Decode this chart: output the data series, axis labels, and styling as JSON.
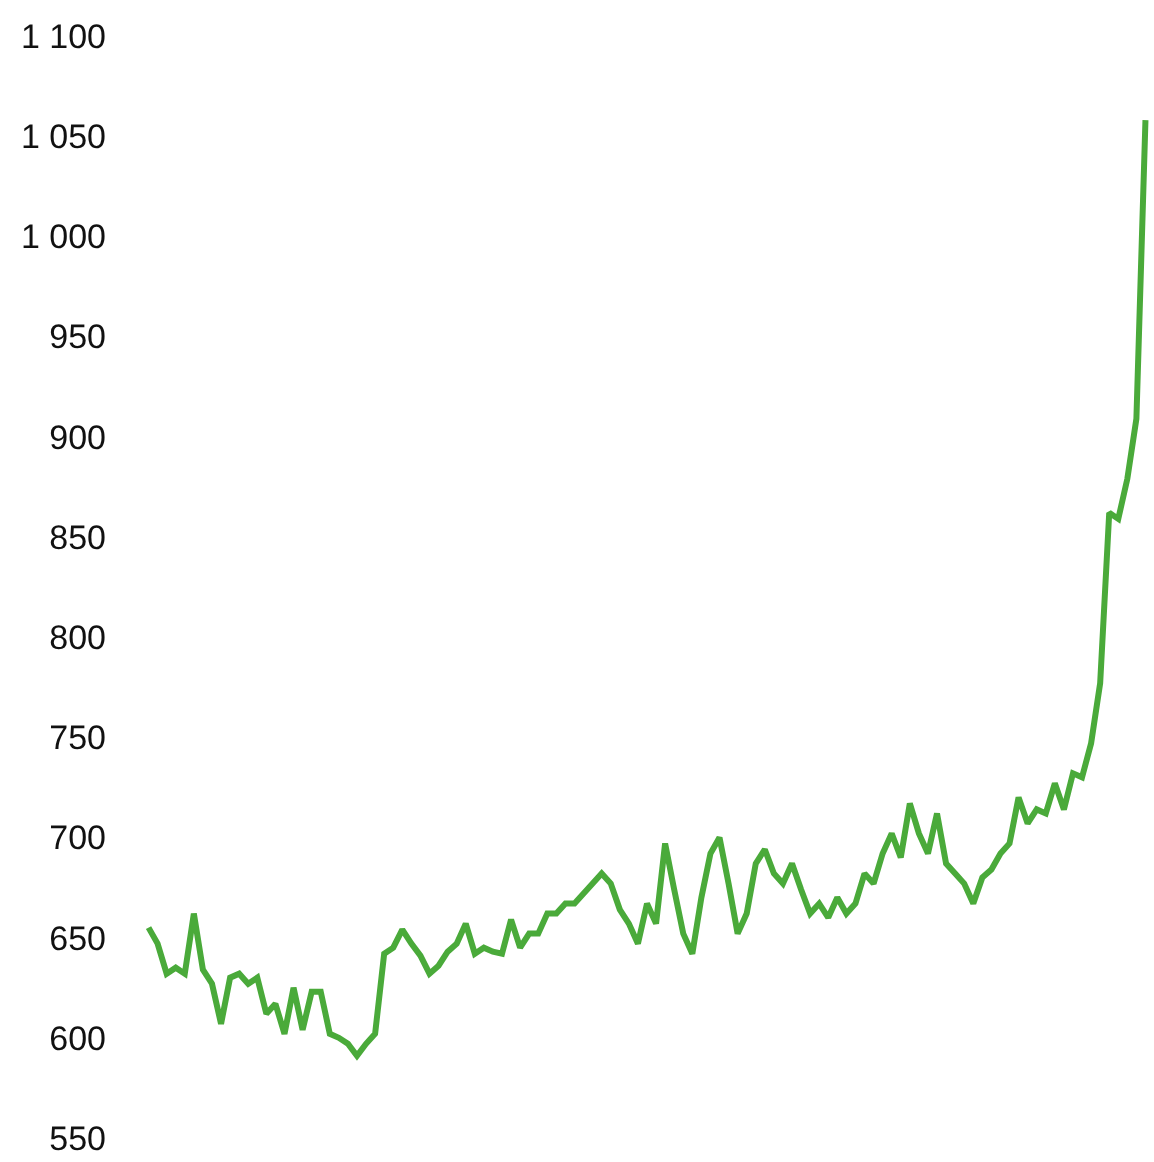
{
  "chart_data": {
    "type": "line",
    "categories": [
      null,
      null,
      null,
      null,
      null,
      null,
      null,
      null,
      null,
      null,
      null,
      null,
      null,
      null,
      null,
      null,
      null,
      null,
      null,
      null,
      null,
      null,
      null,
      null,
      null,
      null,
      null,
      null,
      null,
      null,
      null,
      null,
      null,
      null,
      null,
      null,
      null,
      null,
      null,
      null,
      null,
      null,
      null,
      null,
      null,
      null,
      null,
      null,
      null,
      null,
      null,
      null,
      null,
      null,
      null,
      null,
      null,
      null,
      null,
      null,
      null,
      null,
      null,
      null,
      null,
      null,
      null,
      null,
      null,
      null,
      null,
      null,
      null,
      null,
      null,
      null,
      null,
      null,
      null,
      null,
      null,
      null,
      null,
      null,
      null,
      null,
      null,
      null,
      null,
      null,
      null,
      null,
      null,
      null,
      null,
      null,
      null,
      null,
      null,
      null,
      null,
      null,
      null,
      null,
      null,
      null,
      null,
      null,
      null,
      null,
      null
    ],
    "series": [
      {
        "color": "#4aaa3a",
        "values": [
          655,
          647,
          632,
          635,
          632,
          662,
          634,
          627,
          607,
          630,
          632,
          627,
          630,
          612,
          617,
          602,
          625,
          604,
          623,
          623,
          602,
          600,
          597,
          591,
          597,
          602,
          642,
          645,
          654,
          647,
          641,
          632,
          636,
          643,
          647,
          657,
          642,
          645,
          643,
          642,
          659,
          645,
          652,
          652,
          662,
          662,
          667,
          667,
          672,
          677,
          682,
          677,
          664,
          657,
          647,
          667,
          657,
          697,
          674,
          652,
          642,
          670,
          692,
          700,
          677,
          652,
          662,
          687,
          694,
          682,
          677,
          687,
          674,
          662,
          667,
          660,
          670,
          662,
          667,
          682,
          677,
          692,
          702,
          690,
          717,
          702,
          692,
          712,
          687,
          682,
          677,
          667,
          680,
          684,
          692,
          697,
          720,
          707,
          714,
          712,
          727,
          714,
          732,
          730,
          747,
          777,
          862,
          859,
          879,
          909,
          1058
        ]
      }
    ],
    "ylim": [
      550,
      1100
    ],
    "yticks": [
      550,
      600,
      650,
      700,
      750,
      800,
      850,
      900,
      950,
      {
        "value": 1000,
        "label": "1 000"
      },
      {
        "value": 1050,
        "label": "1 050"
      },
      {
        "value": 1100,
        "label": "1 100"
      }
    ],
    "marker": "none",
    "line_style": "solid"
  }
}
